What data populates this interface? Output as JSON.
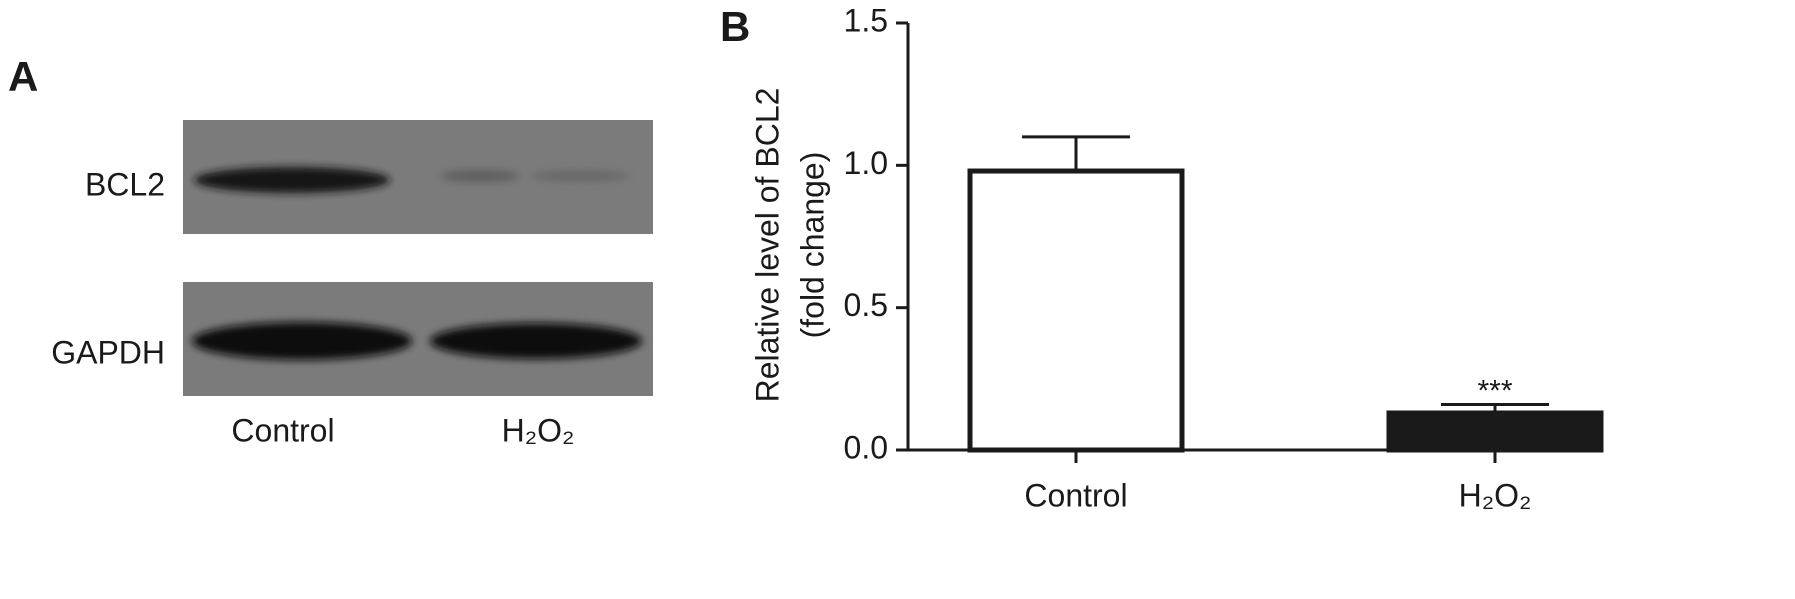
{
  "panel_a": {
    "label": "A",
    "rows": [
      "BCL2",
      "GAPDH"
    ],
    "lanes": [
      "Control",
      "H₂O₂"
    ]
  },
  "chart_data": {
    "type": "bar",
    "panel_label": "B",
    "ylabel": [
      "Relative level of BCL2",
      "(fold change)"
    ],
    "categories": [
      "Control",
      "H₂O₂"
    ],
    "values": [
      0.98,
      0.13
    ],
    "errors": [
      0.12,
      0.03
    ],
    "colors": [
      "#ffffff",
      "#1a1a1a"
    ],
    "significance": [
      null,
      "***"
    ],
    "ylim": [
      0,
      1.5
    ],
    "yticks": [
      {
        "value": 0,
        "label": "0.0"
      },
      0.5,
      {
        "value": 1,
        "label": "1.0"
      },
      {
        "value": 1.5,
        "label": "1.5"
      }
    ]
  }
}
